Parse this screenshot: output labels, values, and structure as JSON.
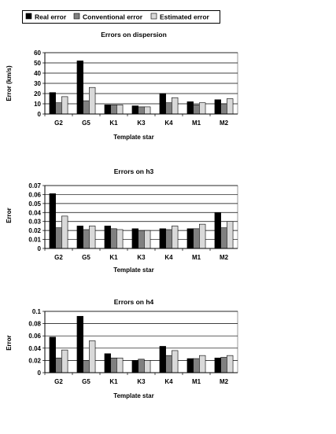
{
  "legend": {
    "items": [
      {
        "label": "Real error",
        "color": "#000000"
      },
      {
        "label": "Conventional error",
        "color": "#808080"
      },
      {
        "label": "Estimated error",
        "color": "#d9d9d9"
      }
    ]
  },
  "chart_data": [
    {
      "type": "bar",
      "title": "Errors on dispersion",
      "xlabel": "Template star",
      "ylabel": "Error (km/s)",
      "ylim": [
        0,
        60
      ],
      "yticks": [
        0,
        10,
        20,
        30,
        40,
        50,
        60
      ],
      "ytick_labels": [
        "0",
        "10",
        "20",
        "30",
        "40",
        "50",
        "60"
      ],
      "grid": true,
      "legend_position": "top",
      "categories": [
        "G2",
        "G5",
        "K1",
        "K3",
        "K4",
        "M1",
        "M2"
      ],
      "series": [
        {
          "name": "Real error",
          "color": "#000000",
          "values": [
            21,
            52,
            9,
            8,
            20,
            12,
            14
          ]
        },
        {
          "name": "Conventional error",
          "color": "#808080",
          "values": [
            11,
            13,
            9,
            7,
            11,
            9,
            10
          ]
        },
        {
          "name": "Estimated error",
          "color": "#d9d9d9",
          "values": [
            17,
            26,
            9,
            7,
            16,
            11,
            15
          ]
        }
      ]
    },
    {
      "type": "bar",
      "title": "Errors on h3",
      "xlabel": "Template star",
      "ylabel": "Error",
      "ylim": [
        0,
        0.07
      ],
      "yticks": [
        0,
        0.01,
        0.02,
        0.03,
        0.04,
        0.05,
        0.06,
        0.07
      ],
      "ytick_labels": [
        "0",
        "0.01",
        "0.02",
        "0.03",
        "0.04",
        "0.05",
        "0.06",
        "0.07"
      ],
      "grid": true,
      "categories": [
        "G2",
        "G5",
        "K1",
        "K3",
        "K4",
        "M1",
        "M2"
      ],
      "series": [
        {
          "name": "Real error",
          "color": "#000000",
          "values": [
            0.061,
            0.025,
            0.025,
            0.022,
            0.022,
            0.022,
            0.04
          ]
        },
        {
          "name": "Conventional error",
          "color": "#808080",
          "values": [
            0.023,
            0.021,
            0.022,
            0.02,
            0.021,
            0.022,
            0.023
          ]
        },
        {
          "name": "Estimated error",
          "color": "#d9d9d9",
          "values": [
            0.036,
            0.025,
            0.021,
            0.02,
            0.025,
            0.027,
            0.03
          ]
        }
      ]
    },
    {
      "type": "bar",
      "title": "Errors on h4",
      "xlabel": "Template star",
      "ylabel": "Error",
      "ylim": [
        0,
        0.1
      ],
      "yticks": [
        0,
        0.02,
        0.04,
        0.06,
        0.08,
        0.1
      ],
      "ytick_labels": [
        "0",
        "0.02",
        "0.04",
        "0.06",
        "0.08",
        "0.1"
      ],
      "grid": true,
      "categories": [
        "G2",
        "G5",
        "K1",
        "K3",
        "K4",
        "M1",
        "M2"
      ],
      "series": [
        {
          "name": "Real error",
          "color": "#000000",
          "values": [
            0.058,
            0.092,
            0.031,
            0.02,
            0.043,
            0.023,
            0.024
          ]
        },
        {
          "name": "Conventional error",
          "color": "#808080",
          "values": [
            0.024,
            0.02,
            0.024,
            0.022,
            0.028,
            0.023,
            0.025
          ]
        },
        {
          "name": "Estimated error",
          "color": "#d9d9d9",
          "values": [
            0.037,
            0.052,
            0.024,
            0.02,
            0.036,
            0.028,
            0.028
          ]
        }
      ]
    }
  ]
}
